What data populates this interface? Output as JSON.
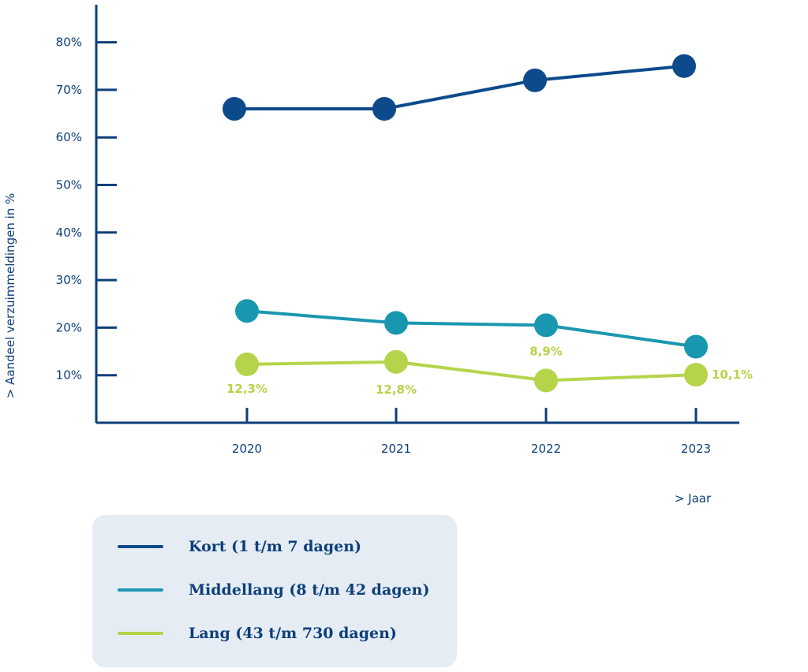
{
  "chart_data": {
    "type": "line",
    "x": [
      "2020",
      "2021",
      "2022",
      "2023"
    ],
    "xlabel": "> Jaar",
    "ylabel": "> Aandeel verzuimmeldingen in %",
    "ylim": [
      0,
      90
    ],
    "yticks": [
      10,
      20,
      30,
      40,
      50,
      60,
      70,
      80
    ],
    "ytick_labels": [
      "10%",
      "20%",
      "30%",
      "40%",
      "50%",
      "60%",
      "70%",
      "80%"
    ],
    "grid": false,
    "legend_position": "bottom-left",
    "series": [
      {
        "name": "Kort (1 t/m 7 dagen)",
        "color": "#0d4a8c",
        "values": [
          66,
          66,
          72,
          75
        ],
        "labels": [
          "",
          "",
          "",
          ""
        ]
      },
      {
        "name": "Middellang (8 t/m 42 dagen)",
        "color": "#1a97b0",
        "values": [
          23.5,
          21,
          20.5,
          16
        ],
        "labels": [
          "",
          "",
          "",
          ""
        ]
      },
      {
        "name": "Lang (43 t/m 730 dagen)",
        "color": "#b5d44a",
        "values": [
          12.3,
          12.8,
          8.9,
          10.1
        ],
        "labels": [
          "12,3%",
          "12,8%",
          "8,9%",
          "10,1%"
        ]
      }
    ]
  }
}
